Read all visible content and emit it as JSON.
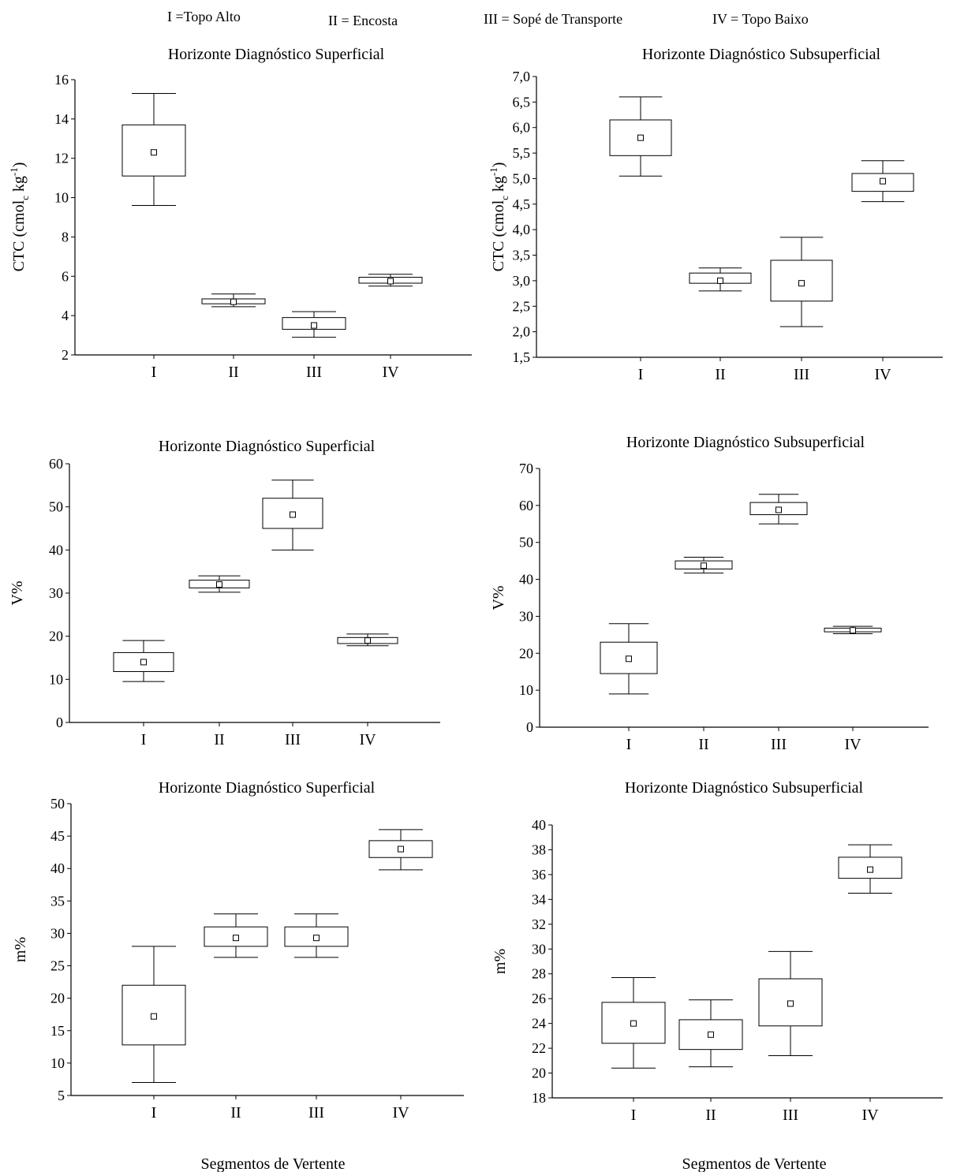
{
  "legend": [
    {
      "code": "I",
      "text": "I =Topo Alto"
    },
    {
      "code": "II",
      "text": "II = Encosta"
    },
    {
      "code": "III",
      "text": "III = Sopé de Transporte"
    },
    {
      "code": "IV",
      "text": "IV = Topo Baixo"
    }
  ],
  "footer": {
    "xlabel_left": "Segmentos de Vertente",
    "xlabel_right": "Segmentos de Vertente"
  },
  "chart_data": [
    {
      "type": "box",
      "title": "Horizonte Diagnóstico Superficial",
      "ylabel": "CTC (cmol_c kg^-1)",
      "ylim": [
        2,
        16
      ],
      "yticks": [
        2,
        4,
        6,
        8,
        10,
        12,
        14,
        16
      ],
      "ytick_labels": [
        "2",
        "4",
        "6",
        "8",
        "10",
        "12",
        "14",
        "16"
      ],
      "categories": [
        "I",
        "II",
        "III",
        "IV"
      ],
      "boxes": [
        {
          "whisker_low": 9.6,
          "q1": 11.1,
          "mean": 12.3,
          "q3": 13.7,
          "whisker_high": 15.3
        },
        {
          "whisker_low": 4.45,
          "q1": 4.6,
          "mean": 4.7,
          "q3": 4.85,
          "whisker_high": 5.1
        },
        {
          "whisker_low": 2.9,
          "q1": 3.3,
          "mean": 3.5,
          "q3": 3.9,
          "whisker_high": 4.2
        },
        {
          "whisker_low": 5.5,
          "q1": 5.65,
          "mean": 5.75,
          "q3": 5.95,
          "whisker_high": 6.1
        }
      ]
    },
    {
      "type": "box",
      "title": "Horizonte Diagnóstico Subsuperficial",
      "ylabel": "CTC (cmol_c kg^-1)",
      "ylim": [
        1.5,
        7.0
      ],
      "yticks": [
        1.5,
        2.0,
        2.5,
        3.0,
        3.5,
        4.0,
        4.5,
        5.0,
        5.5,
        6.0,
        6.5,
        7.0
      ],
      "ytick_labels": [
        "1,5",
        "2,0",
        "2,5",
        "3,0",
        "3,5",
        "4,0",
        "4,5",
        "5,0",
        "5,5",
        "6,0",
        "6,5",
        "7,0"
      ],
      "categories": [
        "I",
        "II",
        "III",
        "IV"
      ],
      "boxes": [
        {
          "whisker_low": 5.05,
          "q1": 5.45,
          "mean": 5.8,
          "q3": 6.15,
          "whisker_high": 6.6
        },
        {
          "whisker_low": 2.8,
          "q1": 2.95,
          "mean": 3.0,
          "q3": 3.15,
          "whisker_high": 3.25
        },
        {
          "whisker_low": 2.1,
          "q1": 2.6,
          "mean": 2.95,
          "q3": 3.4,
          "whisker_high": 3.85
        },
        {
          "whisker_low": 4.55,
          "q1": 4.75,
          "mean": 4.95,
          "q3": 5.1,
          "whisker_high": 5.35
        }
      ]
    },
    {
      "type": "box",
      "title": "Horizonte Diagnóstico Superficial",
      "ylabel": "V%",
      "ylim": [
        0,
        60
      ],
      "yticks": [
        0,
        10,
        20,
        30,
        40,
        50,
        60
      ],
      "ytick_labels": [
        "0",
        "10",
        "20",
        "30",
        "40",
        "50",
        "60"
      ],
      "categories": [
        "I",
        "II",
        "III",
        "IV"
      ],
      "boxes": [
        {
          "whisker_low": 9.5,
          "q1": 11.8,
          "mean": 14.0,
          "q3": 16.2,
          "whisker_high": 19.0
        },
        {
          "whisker_low": 30.2,
          "q1": 31.2,
          "mean": 32.0,
          "q3": 33.0,
          "whisker_high": 34.0
        },
        {
          "whisker_low": 40.0,
          "q1": 45.0,
          "mean": 48.2,
          "q3": 52.0,
          "whisker_high": 56.2
        },
        {
          "whisker_low": 17.8,
          "q1": 18.3,
          "mean": 19.0,
          "q3": 19.7,
          "whisker_high": 20.5
        }
      ]
    },
    {
      "type": "box",
      "title": "Horizonte Diagnóstico Subsuperficial",
      "ylabel": "V%",
      "ylim": [
        0,
        70
      ],
      "yticks": [
        0,
        10,
        20,
        30,
        40,
        50,
        60,
        70
      ],
      "ytick_labels": [
        "0",
        "10",
        "20",
        "30",
        "40",
        "50",
        "60",
        "70"
      ],
      "categories": [
        "I",
        "II",
        "III",
        "IV"
      ],
      "boxes": [
        {
          "whisker_low": 9.0,
          "q1": 14.5,
          "mean": 18.5,
          "q3": 23.0,
          "whisker_high": 28.0
        },
        {
          "whisker_low": 41.7,
          "q1": 42.8,
          "mean": 43.7,
          "q3": 45.0,
          "whisker_high": 46.0
        },
        {
          "whisker_low": 55.0,
          "q1": 57.5,
          "mean": 58.8,
          "q3": 60.8,
          "whisker_high": 63.0
        },
        {
          "whisker_low": 25.3,
          "q1": 25.8,
          "mean": 26.2,
          "q3": 26.8,
          "whisker_high": 27.3
        }
      ]
    },
    {
      "type": "box",
      "title": "Horizonte Diagnóstico Superficial",
      "ylabel": "m%",
      "ylim": [
        5,
        50
      ],
      "yticks": [
        5,
        10,
        15,
        20,
        25,
        30,
        35,
        40,
        45,
        50
      ],
      "ytick_labels": [
        "5",
        "10",
        "15",
        "20",
        "25",
        "30",
        "35",
        "40",
        "45",
        "50"
      ],
      "categories": [
        "I",
        "II",
        "III",
        "IV"
      ],
      "boxes": [
        {
          "whisker_low": 7.0,
          "q1": 12.8,
          "mean": 17.2,
          "q3": 22.0,
          "whisker_high": 28.0
        },
        {
          "whisker_low": 26.3,
          "q1": 28.0,
          "mean": 29.3,
          "q3": 31.0,
          "whisker_high": 33.0
        },
        {
          "whisker_low": 26.3,
          "q1": 28.0,
          "mean": 29.3,
          "q3": 31.0,
          "whisker_high": 33.0
        },
        {
          "whisker_low": 39.8,
          "q1": 41.7,
          "mean": 43.0,
          "q3": 44.3,
          "whisker_high": 46.0
        }
      ]
    },
    {
      "type": "box",
      "title": "Horizonte Diagnóstico Subsuperficial",
      "ylabel": "m%",
      "ylim": [
        18,
        40
      ],
      "yticks": [
        18,
        20,
        22,
        24,
        26,
        28,
        30,
        32,
        34,
        36,
        38,
        40
      ],
      "ytick_labels": [
        "18",
        "20",
        "22",
        "24",
        "26",
        "28",
        "30",
        "32",
        "34",
        "36",
        "38",
        "40"
      ],
      "categories": [
        "I",
        "II",
        "III",
        "IV"
      ],
      "boxes": [
        {
          "whisker_low": 20.4,
          "q1": 22.4,
          "mean": 24.0,
          "q3": 25.7,
          "whisker_high": 27.7
        },
        {
          "whisker_low": 20.5,
          "q1": 21.9,
          "mean": 23.1,
          "q3": 24.3,
          "whisker_high": 25.9
        },
        {
          "whisker_low": 21.4,
          "q1": 23.8,
          "mean": 25.6,
          "q3": 27.6,
          "whisker_high": 29.8
        },
        {
          "whisker_low": 34.5,
          "q1": 35.7,
          "mean": 36.4,
          "q3": 37.4,
          "whisker_high": 38.4
        }
      ]
    }
  ]
}
